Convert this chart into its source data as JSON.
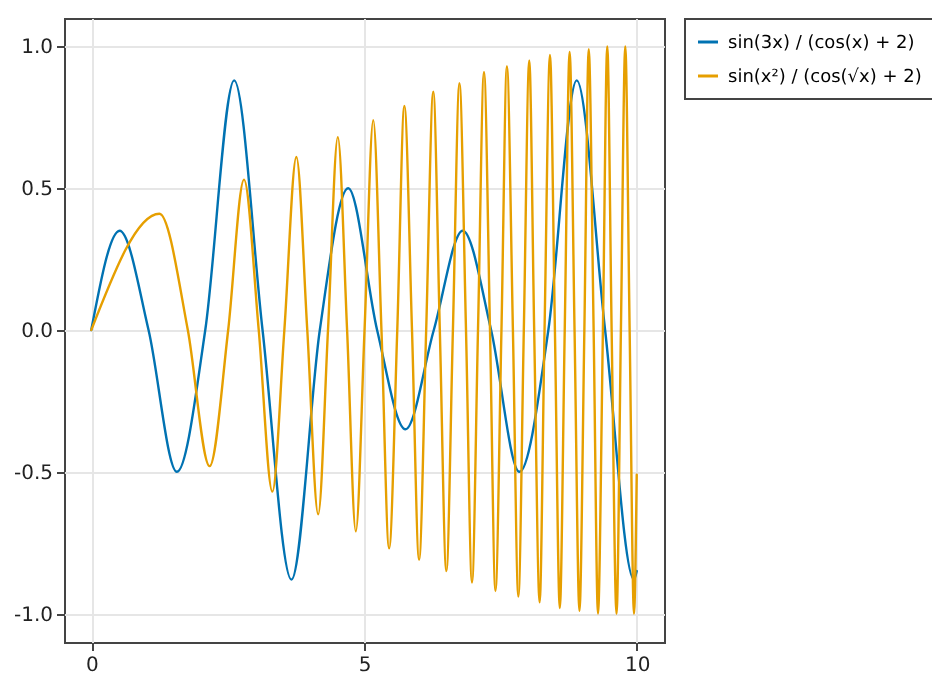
{
  "chart_data": {
    "type": "line",
    "xlim": [
      -0.5,
      10.5
    ],
    "ylim": [
      -1.1,
      1.1
    ],
    "xticks": [
      0,
      5,
      10
    ],
    "yticks": [
      {
        "value": -1,
        "label": "-1.0"
      },
      {
        "value": -0.5,
        "label": "-0.5"
      },
      {
        "value": 0,
        "label": "0.0"
      },
      {
        "value": 0.5,
        "label": "0.5"
      },
      {
        "value": 1,
        "label": "1.0"
      }
    ],
    "grid": true,
    "legend": "right",
    "marker": "none",
    "line_style": "solid",
    "series": [
      {
        "name": "sin(3x) / (cos(x) + 2)",
        "color": "#0072b2",
        "x": [
          0,
          0.52,
          1.05,
          1.57,
          2.09,
          2.62,
          3.14,
          3.67,
          4.19,
          4.71,
          5.24,
          5.76,
          6.28,
          6.81,
          7.33,
          7.85,
          8.38,
          8.9,
          9.42,
          9.95,
          10
        ],
        "values": [
          0,
          0.35,
          0,
          -0.5,
          0,
          0.88,
          0,
          -0.88,
          0,
          0.5,
          0,
          -0.35,
          0,
          0.35,
          0,
          -0.5,
          0,
          0.88,
          0,
          -0.88,
          -0.85
        ]
      },
      {
        "name": "sin(x²) / (cos(√x) + 2)",
        "color": "#e69f00",
        "x": [
          0,
          1.25,
          1.77,
          2.17,
          2.51,
          2.8,
          3.07,
          3.32,
          3.54,
          3.76,
          3.96,
          4.16,
          4.34,
          4.52,
          4.69,
          4.85,
          5.01,
          5.17,
          5.32,
          5.46,
          5.61,
          5.74,
          5.88,
          6.01,
          6.14,
          6.27,
          6.39,
          6.51,
          6.63,
          6.75,
          6.87,
          6.98,
          7.09,
          7.2,
          7.31,
          7.41,
          7.52,
          7.62,
          7.73,
          7.83,
          7.93,
          8.03,
          8.12,
          8.22,
          8.31,
          8.41,
          8.5,
          8.59,
          8.68,
          8.77,
          8.86,
          8.95,
          9.04,
          9.12,
          9.21,
          9.29,
          9.38,
          9.46,
          9.54,
          9.63,
          9.71,
          9.79,
          9.87,
          9.95,
          10
        ],
        "values": [
          0,
          0.41,
          0,
          -0.48,
          0,
          0.53,
          0,
          -0.57,
          0,
          0.61,
          0,
          -0.65,
          0,
          0.68,
          0,
          -0.71,
          0,
          0.74,
          0,
          -0.77,
          0,
          0.79,
          0,
          -0.81,
          0,
          0.84,
          0,
          -0.85,
          0,
          0.87,
          0,
          -0.89,
          0,
          0.91,
          0,
          -0.92,
          0,
          0.93,
          0,
          -0.94,
          0,
          0.95,
          0,
          -0.96,
          0,
          0.97,
          0,
          -0.98,
          0,
          0.98,
          0,
          -0.99,
          0,
          0.99,
          0,
          -1.0,
          0,
          1.0,
          0,
          -1.0,
          0,
          1.0,
          0,
          -1.0,
          -0.51
        ]
      }
    ]
  }
}
